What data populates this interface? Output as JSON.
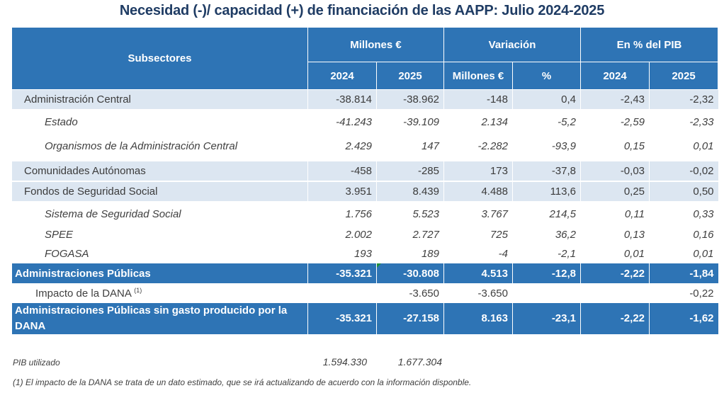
{
  "title": "Necesidad (-)/ capacidad (+) de financiación de las AAPP:  Julio 2024-2025",
  "header": {
    "subsectores": "Subsectores",
    "group_millones": "Millones €",
    "group_variacion": "Variación",
    "group_pib": "En % del PIB",
    "sub": [
      "2024",
      "2025",
      "Millones €",
      "%",
      "2024",
      "2025"
    ]
  },
  "rows": [
    {
      "label": "Administración Central",
      "values": [
        "-38.814",
        "-38.962",
        "-148",
        "0,4",
        "-2,43",
        "-2,32"
      ]
    },
    {
      "label": "Estado",
      "values": [
        "-41.243",
        "-39.109",
        "2.134",
        "-5,2",
        "-2,59",
        "-2,33"
      ]
    },
    {
      "label": "Organismos de la Administración Central",
      "values": [
        "2.429",
        "147",
        "-2.282",
        "-93,9",
        "0,15",
        "0,01"
      ]
    },
    {
      "label": "Comunidades Autónomas",
      "values": [
        "-458",
        "-285",
        "173",
        "-37,8",
        "-0,03",
        "-0,02"
      ]
    },
    {
      "label": "Fondos de Seguridad Social",
      "values": [
        "3.951",
        "8.439",
        "4.488",
        "113,6",
        "0,25",
        "0,50"
      ]
    },
    {
      "label": "Sistema de Seguridad Social",
      "values": [
        "1.756",
        "5.523",
        "3.767",
        "214,5",
        "0,11",
        "0,33"
      ]
    },
    {
      "label": "SPEE",
      "values": [
        "2.002",
        "2.727",
        "725",
        "36,2",
        "0,13",
        "0,16"
      ]
    },
    {
      "label": "FOGASA",
      "values": [
        "193",
        "189",
        "-4",
        "-2,1",
        "0,01",
        "0,01"
      ]
    },
    {
      "label": "Administraciones Públicas",
      "values": [
        "-35.321",
        "-30.808",
        "4.513",
        "-12,8",
        "-2,22",
        "-1,84"
      ]
    },
    {
      "label": "Impacto de la DANA",
      "sup": "(1)",
      "values": [
        "",
        "-3.650",
        "-3.650",
        "",
        "",
        "-0,22"
      ]
    },
    {
      "label": "Administraciones Públicas sin gasto producido por la DANA",
      "values": [
        "-35.321",
        "-27.158",
        "8.163",
        "-23,1",
        "-2,22",
        "-1,62"
      ]
    }
  ],
  "pib": {
    "label": "PIB utilizado",
    "v2024": "1.594.330",
    "v2025": "1.677.304"
  },
  "note": "(1) El impacto de la DANA se trata de un dato estimado, que se irá actualizando de acuerdo con la información disponble."
}
